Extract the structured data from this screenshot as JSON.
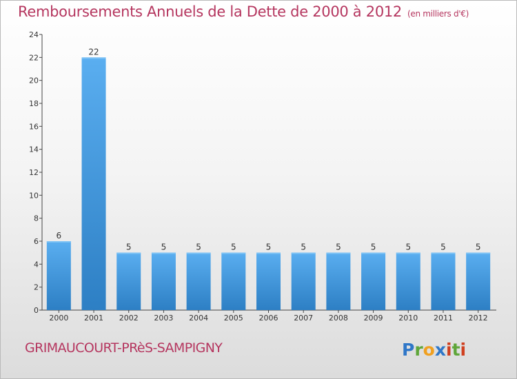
{
  "chart_data": {
    "type": "bar",
    "title": "Remboursements Annuels de la Dette de 2000 à 2012",
    "unit": "(en milliers d'€)",
    "xlabel": "",
    "ylabel": "",
    "categories": [
      "2000",
      "2001",
      "2002",
      "2003",
      "2004",
      "2005",
      "2006",
      "2007",
      "2008",
      "2009",
      "2010",
      "2011",
      "2012"
    ],
    "values": [
      6,
      22,
      5,
      5,
      5,
      5,
      5,
      5,
      5,
      5,
      5,
      5,
      5
    ],
    "ylim": [
      0,
      24
    ],
    "yticks": [
      0,
      2,
      4,
      6,
      8,
      10,
      12,
      14,
      16,
      18,
      20,
      22,
      24
    ],
    "grid": false,
    "bar_color": "#3a8fd6"
  },
  "footer": {
    "commune": "GRIMAUCOURT-PRèS-SAMPIGNY",
    "logo_text": "Proxiti"
  },
  "colors": {
    "title": "#b5365f",
    "logo_p": "#2f77c8",
    "logo_r": "#5fa63a",
    "logo_o": "#f0a020",
    "logo_x": "#2f77c8",
    "logo_i": "#d04020",
    "logo_t": "#5fa63a"
  }
}
